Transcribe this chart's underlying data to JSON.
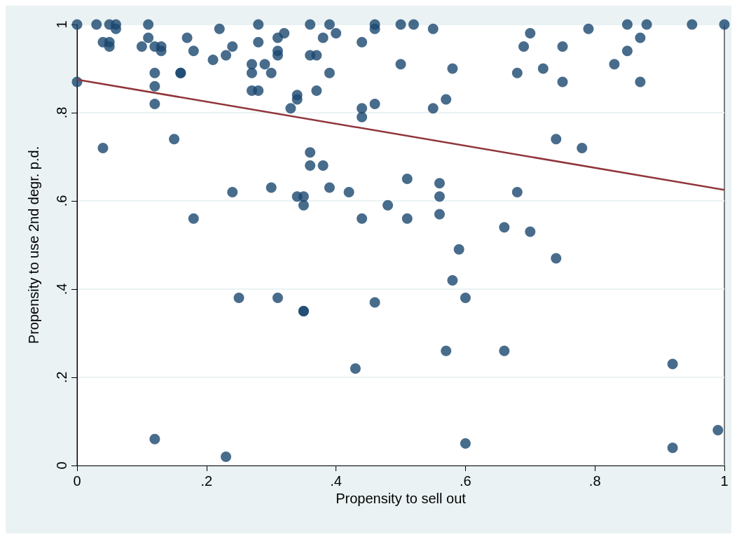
{
  "chart_data": {
    "type": "scatter",
    "xlabel": "Propensity to sell out",
    "ylabel": "Propensity to use 2nd degr. p.d.",
    "xlim": [
      0,
      1
    ],
    "ylim": [
      0,
      1
    ],
    "xticks": [
      0,
      {
        "value": 0.2,
        "label": ".2"
      },
      {
        "value": 0.4,
        "label": ".4"
      },
      {
        "value": 0.6,
        "label": ".6"
      },
      {
        "value": 0.8,
        "label": ".8"
      },
      1
    ],
    "yticks": [
      0,
      {
        "value": 0.2,
        "label": ".2"
      },
      {
        "value": 0.4,
        "label": ".4"
      },
      {
        "value": 0.6,
        "label": ".6"
      },
      {
        "value": 0.8,
        "label": ".8"
      },
      1
    ],
    "grid": "y",
    "line_style": "solid",
    "series": [
      {
        "marker": "circle",
        "color": "#1a476f",
        "x": [
          0,
          0,
          0.03,
          0.04,
          0.05,
          0.05,
          0.06,
          0.05,
          0.06,
          0.04,
          0.1,
          0.11,
          0.11,
          0.12,
          0.12,
          0.12,
          0.12,
          0.13,
          0.13,
          0.12,
          0.15,
          0.16,
          0.16,
          0.17,
          0.18,
          0.18,
          0.21,
          0.22,
          0.23,
          0.23,
          0.24,
          0.24,
          0.25,
          0.27,
          0.27,
          0.27,
          0.28,
          0.28,
          0.28,
          0.29,
          0.3,
          0.3,
          0.31,
          0.31,
          0.31,
          0.31,
          0.32,
          0.33,
          0.34,
          0.34,
          0.34,
          0.35,
          0.35,
          0.35,
          0.35,
          0.36,
          0.36,
          0.36,
          0.36,
          0.37,
          0.37,
          0.38,
          0.38,
          0.39,
          0.39,
          0.39,
          0.4,
          0.42,
          0.43,
          0.44,
          0.44,
          0.44,
          0.44,
          0.46,
          0.46,
          0.46,
          0.46,
          0.48,
          0.5,
          0.5,
          0.51,
          0.51,
          0.52,
          0.55,
          0.55,
          0.56,
          0.56,
          0.56,
          0.57,
          0.57,
          0.58,
          0.58,
          0.59,
          0.6,
          0.6,
          0.66,
          0.66,
          0.68,
          0.68,
          0.69,
          0.7,
          0.7,
          0.72,
          0.74,
          0.74,
          0.75,
          0.75,
          0.78,
          0.79,
          0.83,
          0.85,
          0.85,
          0.87,
          0.87,
          0.88,
          0.92,
          0.92,
          0.95,
          0.99,
          1
        ],
        "values": [
          1,
          0.87,
          1,
          0.96,
          0.96,
          1,
          1,
          0.95,
          0.99,
          0.72,
          0.95,
          1,
          0.97,
          0.95,
          0.89,
          0.86,
          0.82,
          0.94,
          0.95,
          0.06,
          0.74,
          0.89,
          0.89,
          0.97,
          0.94,
          0.56,
          0.92,
          0.99,
          0.93,
          0.02,
          0.95,
          0.62,
          0.38,
          0.89,
          0.85,
          0.91,
          0.96,
          0.85,
          1,
          0.91,
          0.89,
          0.63,
          0.94,
          0.93,
          0.38,
          0.97,
          0.98,
          0.81,
          0.84,
          0.83,
          0.61,
          0.59,
          0.61,
          0.35,
          0.35,
          0.71,
          0.68,
          0.93,
          1,
          0.93,
          0.85,
          0.97,
          0.68,
          1,
          0.89,
          0.63,
          0.98,
          0.62,
          0.22,
          0.81,
          0.56,
          0.96,
          0.79,
          0.99,
          1,
          0.82,
          0.37,
          0.59,
          1,
          0.91,
          0.56,
          0.65,
          1,
          0.99,
          0.81,
          0.57,
          0.64,
          0.61,
          0.26,
          0.83,
          0.42,
          0.9,
          0.49,
          0.38,
          0.05,
          0.54,
          0.26,
          0.89,
          0.62,
          0.95,
          0.98,
          0.53,
          0.9,
          0.74,
          0.47,
          0.87,
          0.95,
          0.72,
          0.99,
          0.91,
          1,
          0.94,
          0.97,
          0.87,
          1,
          0.04,
          0.23,
          1,
          0.08,
          1
        ]
      },
      {
        "type": "line",
        "marker": "none",
        "color": "#90353b",
        "x": [
          0,
          1
        ],
        "values": [
          0.875,
          0.625
        ]
      }
    ]
  }
}
